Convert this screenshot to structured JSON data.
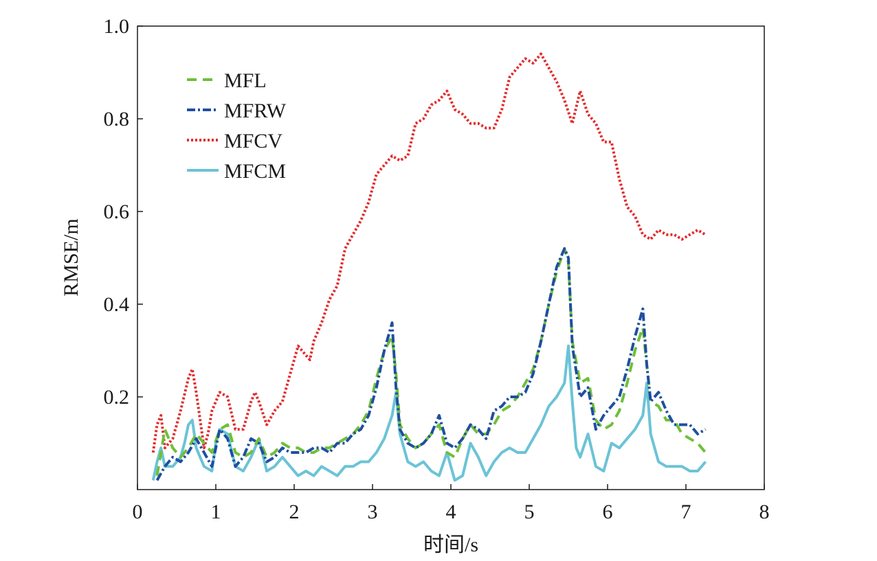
{
  "chart_data": {
    "type": "line",
    "xlabel": "时间/s",
    "ylabel": "RMSE/m",
    "xlim": [
      0,
      8
    ],
    "ylim": [
      0,
      1.0
    ],
    "xticks": [
      0,
      1,
      2,
      3,
      4,
      5,
      6,
      7,
      8
    ],
    "xtick_labels": [
      "0",
      "1",
      "2",
      "3",
      "4",
      "5",
      "6",
      "7",
      "8"
    ],
    "yticks": [
      0.2,
      0.4,
      0.6,
      0.8,
      1.0
    ],
    "ytick_labels": [
      "0.2",
      "0.4",
      "0.6",
      "0.8",
      "1.0"
    ],
    "grid": false,
    "legend_position": "top-left",
    "series": [
      {
        "name": "MFL",
        "color": "#6fbf3a",
        "style": "dashed",
        "x": [
          0.25,
          0.35,
          0.45,
          0.55,
          0.65,
          0.75,
          0.85,
          0.95,
          1.05,
          1.15,
          1.25,
          1.35,
          1.45,
          1.55,
          1.65,
          1.75,
          1.85,
          1.95,
          2.05,
          2.15,
          2.25,
          2.35,
          2.45,
          2.55,
          2.65,
          2.75,
          2.85,
          2.95,
          3.05,
          3.15,
          3.25,
          3.3,
          3.35,
          3.45,
          3.55,
          3.65,
          3.75,
          3.85,
          3.95,
          4.05,
          4.15,
          4.25,
          4.35,
          4.45,
          4.55,
          4.65,
          4.75,
          4.85,
          4.95,
          5.05,
          5.15,
          5.25,
          5.35,
          5.45,
          5.5,
          5.55,
          5.65,
          5.75,
          5.85,
          5.95,
          6.05,
          6.15,
          6.25,
          6.35,
          6.45,
          6.5,
          6.55,
          6.65,
          6.75,
          6.85,
          6.95,
          7.05,
          7.15,
          7.25
        ],
        "values": [
          0.03,
          0.13,
          0.09,
          0.07,
          0.09,
          0.12,
          0.1,
          0.08,
          0.13,
          0.14,
          0.08,
          0.07,
          0.08,
          0.11,
          0.07,
          0.08,
          0.1,
          0.09,
          0.09,
          0.08,
          0.08,
          0.09,
          0.09,
          0.1,
          0.11,
          0.12,
          0.14,
          0.17,
          0.24,
          0.3,
          0.33,
          0.25,
          0.14,
          0.11,
          0.09,
          0.1,
          0.12,
          0.14,
          0.08,
          0.07,
          0.11,
          0.14,
          0.12,
          0.12,
          0.14,
          0.17,
          0.18,
          0.2,
          0.23,
          0.26,
          0.32,
          0.4,
          0.47,
          0.52,
          0.49,
          0.32,
          0.23,
          0.24,
          0.15,
          0.13,
          0.14,
          0.17,
          0.23,
          0.3,
          0.35,
          0.27,
          0.19,
          0.18,
          0.15,
          0.15,
          0.12,
          0.11,
          0.1,
          0.08
        ]
      },
      {
        "name": "MFRW",
        "color": "#1f4fa0",
        "style": "dashdot",
        "x": [
          0.25,
          0.35,
          0.45,
          0.55,
          0.65,
          0.75,
          0.85,
          0.95,
          1.05,
          1.15,
          1.25,
          1.35,
          1.45,
          1.55,
          1.65,
          1.75,
          1.85,
          1.95,
          2.05,
          2.15,
          2.25,
          2.35,
          2.45,
          2.55,
          2.65,
          2.75,
          2.85,
          2.95,
          3.05,
          3.15,
          3.25,
          3.3,
          3.35,
          3.45,
          3.55,
          3.65,
          3.75,
          3.85,
          3.95,
          4.05,
          4.15,
          4.25,
          4.35,
          4.45,
          4.55,
          4.65,
          4.75,
          4.85,
          4.95,
          5.05,
          5.15,
          5.25,
          5.35,
          5.45,
          5.5,
          5.55,
          5.65,
          5.75,
          5.85,
          5.95,
          6.05,
          6.15,
          6.25,
          6.35,
          6.45,
          6.5,
          6.55,
          6.65,
          6.75,
          6.85,
          6.95,
          7.05,
          7.15,
          7.25
        ],
        "values": [
          0.02,
          0.05,
          0.07,
          0.06,
          0.08,
          0.11,
          0.08,
          0.05,
          0.13,
          0.11,
          0.05,
          0.07,
          0.11,
          0.1,
          0.06,
          0.07,
          0.09,
          0.08,
          0.08,
          0.08,
          0.09,
          0.09,
          0.08,
          0.1,
          0.1,
          0.12,
          0.13,
          0.16,
          0.22,
          0.3,
          0.36,
          0.22,
          0.13,
          0.1,
          0.09,
          0.1,
          0.12,
          0.16,
          0.1,
          0.09,
          0.11,
          0.14,
          0.13,
          0.11,
          0.17,
          0.18,
          0.2,
          0.2,
          0.21,
          0.25,
          0.32,
          0.4,
          0.48,
          0.52,
          0.5,
          0.31,
          0.2,
          0.22,
          0.13,
          0.16,
          0.18,
          0.2,
          0.26,
          0.33,
          0.39,
          0.27,
          0.19,
          0.21,
          0.17,
          0.14,
          0.14,
          0.14,
          0.12,
          0.13
        ]
      },
      {
        "name": "MFCV",
        "color": "#e32b2b",
        "style": "dotted",
        "x": [
          0.2,
          0.25,
          0.3,
          0.35,
          0.45,
          0.55,
          0.65,
          0.7,
          0.75,
          0.85,
          0.9,
          0.95,
          1.05,
          1.15,
          1.25,
          1.35,
          1.45,
          1.5,
          1.55,
          1.65,
          1.75,
          1.85,
          1.95,
          2.05,
          2.15,
          2.2,
          2.25,
          2.35,
          2.45,
          2.55,
          2.65,
          2.75,
          2.85,
          2.95,
          3.05,
          3.15,
          3.25,
          3.35,
          3.45,
          3.55,
          3.65,
          3.75,
          3.85,
          3.95,
          4.05,
          4.15,
          4.25,
          4.35,
          4.45,
          4.55,
          4.65,
          4.75,
          4.85,
          4.95,
          5.05,
          5.15,
          5.25,
          5.35,
          5.45,
          5.55,
          5.65,
          5.75,
          5.85,
          5.9,
          5.95,
          6.05,
          6.15,
          6.25,
          6.35,
          6.45,
          6.55,
          6.65,
          6.75,
          6.85,
          6.95,
          7.05,
          7.15,
          7.25
        ],
        "values": [
          0.08,
          0.14,
          0.16,
          0.09,
          0.11,
          0.17,
          0.24,
          0.26,
          0.21,
          0.09,
          0.12,
          0.17,
          0.21,
          0.2,
          0.13,
          0.13,
          0.19,
          0.21,
          0.19,
          0.14,
          0.17,
          0.19,
          0.25,
          0.31,
          0.29,
          0.28,
          0.32,
          0.36,
          0.41,
          0.44,
          0.52,
          0.55,
          0.58,
          0.62,
          0.68,
          0.7,
          0.72,
          0.71,
          0.72,
          0.79,
          0.8,
          0.83,
          0.84,
          0.86,
          0.82,
          0.81,
          0.79,
          0.79,
          0.78,
          0.78,
          0.82,
          0.89,
          0.91,
          0.93,
          0.92,
          0.94,
          0.91,
          0.88,
          0.84,
          0.79,
          0.86,
          0.81,
          0.79,
          0.77,
          0.75,
          0.75,
          0.67,
          0.61,
          0.59,
          0.55,
          0.54,
          0.56,
          0.55,
          0.55,
          0.54,
          0.55,
          0.56,
          0.55
        ]
      },
      {
        "name": "MFCM",
        "color": "#6cc3d6",
        "style": "solid",
        "x": [
          0.2,
          0.25,
          0.3,
          0.35,
          0.45,
          0.55,
          0.6,
          0.65,
          0.7,
          0.75,
          0.85,
          0.95,
          1.0,
          1.05,
          1.15,
          1.25,
          1.35,
          1.45,
          1.55,
          1.65,
          1.75,
          1.85,
          1.95,
          2.05,
          2.15,
          2.25,
          2.35,
          2.45,
          2.55,
          2.65,
          2.75,
          2.85,
          2.95,
          3.05,
          3.15,
          3.25,
          3.3,
          3.35,
          3.45,
          3.55,
          3.65,
          3.75,
          3.85,
          3.95,
          4.05,
          4.15,
          4.25,
          4.35,
          4.45,
          4.55,
          4.65,
          4.75,
          4.85,
          4.95,
          5.05,
          5.15,
          5.25,
          5.35,
          5.45,
          5.5,
          5.55,
          5.6,
          5.65,
          5.75,
          5.85,
          5.95,
          6.05,
          6.15,
          6.25,
          6.35,
          6.45,
          6.5,
          6.55,
          6.65,
          6.75,
          6.85,
          6.95,
          7.05,
          7.15,
          7.25
        ],
        "values": [
          0.02,
          0.06,
          0.09,
          0.05,
          0.05,
          0.07,
          0.1,
          0.14,
          0.15,
          0.09,
          0.05,
          0.04,
          0.1,
          0.13,
          0.12,
          0.05,
          0.04,
          0.07,
          0.11,
          0.04,
          0.05,
          0.07,
          0.05,
          0.03,
          0.04,
          0.03,
          0.05,
          0.04,
          0.03,
          0.05,
          0.05,
          0.06,
          0.06,
          0.08,
          0.11,
          0.16,
          0.21,
          0.12,
          0.06,
          0.05,
          0.06,
          0.04,
          0.03,
          0.08,
          0.02,
          0.03,
          0.1,
          0.07,
          0.03,
          0.06,
          0.08,
          0.09,
          0.08,
          0.08,
          0.11,
          0.14,
          0.18,
          0.2,
          0.23,
          0.31,
          0.19,
          0.09,
          0.07,
          0.12,
          0.05,
          0.04,
          0.1,
          0.09,
          0.11,
          0.13,
          0.16,
          0.23,
          0.12,
          0.06,
          0.05,
          0.05,
          0.05,
          0.04,
          0.04,
          0.06
        ]
      }
    ]
  }
}
